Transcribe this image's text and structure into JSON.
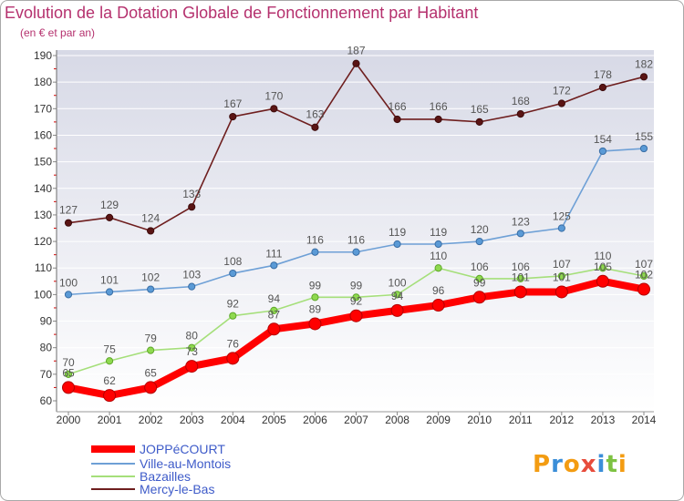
{
  "chart_data": {
    "type": "line",
    "title": "Evolution de la Dotation Globale de Fonctionnement par Habitant",
    "subtitle": "(en € et par an)",
    "categories": [
      "2000",
      "2001",
      "2002",
      "2003",
      "2004",
      "2005",
      "2006",
      "2007",
      "2008",
      "2009",
      "2010",
      "2011",
      "2012",
      "2013",
      "2014"
    ],
    "ylim": [
      60,
      190
    ],
    "yticks": [
      60,
      70,
      80,
      90,
      100,
      110,
      120,
      130,
      140,
      150,
      160,
      170,
      180,
      190
    ],
    "series": [
      {
        "name": "JOPPéCOURT",
        "values": [
          65,
          62,
          65,
          73,
          76,
          87,
          89,
          92,
          94,
          96,
          99,
          101,
          101,
          105,
          102
        ],
        "color": "#ff0000",
        "marker_fill": "#ff0000",
        "marker_stroke": "#b30000"
      },
      {
        "name": "Ville-au-Montois",
        "values": [
          100,
          101,
          102,
          103,
          108,
          111,
          116,
          116,
          119,
          119,
          120,
          123,
          125,
          154,
          155
        ],
        "color": "#6ea0d6",
        "marker_fill": "#5a9ad6",
        "marker_stroke": "#3a6ea5"
      },
      {
        "name": "Bazailles",
        "values": [
          70,
          75,
          79,
          80,
          92,
          94,
          99,
          99,
          100,
          110,
          106,
          106,
          107,
          110,
          107
        ],
        "color": "#a5df7a",
        "marker_fill": "#8fd94f",
        "marker_stroke": "#5ea72a"
      },
      {
        "name": "Mercy-le-Bas",
        "values": [
          127,
          129,
          124,
          133,
          167,
          170,
          163,
          187,
          166,
          166,
          165,
          168,
          172,
          178,
          182
        ],
        "color": "#6e1e1e",
        "marker_fill": "#5a1414",
        "marker_stroke": "#3d0b0b"
      }
    ]
  },
  "logo": {
    "text": "Proxiti",
    "colors": [
      "#f39c12",
      "#3b8ed8",
      "#f39c12",
      "#e74c3c",
      "#3b8ed8",
      "#7dc242",
      "#f39c12"
    ]
  }
}
